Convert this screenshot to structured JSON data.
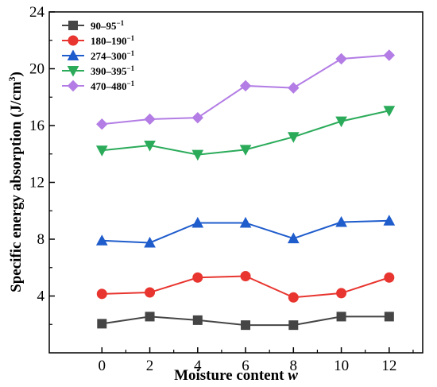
{
  "chart_data": {
    "type": "line",
    "x": [
      0,
      2,
      4,
      6,
      8,
      10,
      12
    ],
    "xlim": [
      -2.2,
      13.4
    ],
    "ylim": [
      0,
      24
    ],
    "xticks": [
      "0",
      "2",
      "4",
      "6",
      "8",
      "10",
      "12"
    ],
    "yticks": [
      "4",
      "8",
      "12",
      "16",
      "20",
      "24"
    ],
    "xlabel": "Moisture content ",
    "xlabel_var": "w",
    "ylabel": "Specific energy absorption (J/cm",
    "ylabel_sup": "3",
    "ylabel_end": ")",
    "grid": false,
    "legend_position": "top-left",
    "series": [
      {
        "name": "90–95",
        "name_sup": "−1",
        "color": "#454545",
        "marker": "square",
        "values": [
          2.05,
          2.55,
          2.3,
          1.95,
          1.95,
          2.55,
          2.55
        ]
      },
      {
        "name": "180–190",
        "name_sup": "−1",
        "color": "#e8352f",
        "marker": "circle",
        "values": [
          4.15,
          4.25,
          5.3,
          5.4,
          3.9,
          4.2,
          5.3
        ]
      },
      {
        "name": "274–300",
        "name_sup": "−1",
        "color": "#1f5ccc",
        "marker": "triangle-up",
        "values": [
          7.9,
          7.75,
          9.15,
          9.15,
          8.05,
          9.2,
          9.3
        ]
      },
      {
        "name": "390–395",
        "name_sup": "−1",
        "color": "#2bab5a",
        "marker": "triangle-down",
        "values": [
          14.25,
          14.6,
          13.95,
          14.3,
          15.2,
          16.3,
          17.05
        ]
      },
      {
        "name": "470–480",
        "name_sup": "−1",
        "color": "#b37de5",
        "marker": "diamond",
        "values": [
          16.1,
          16.45,
          16.55,
          18.8,
          18.65,
          20.7,
          20.95
        ]
      }
    ]
  }
}
